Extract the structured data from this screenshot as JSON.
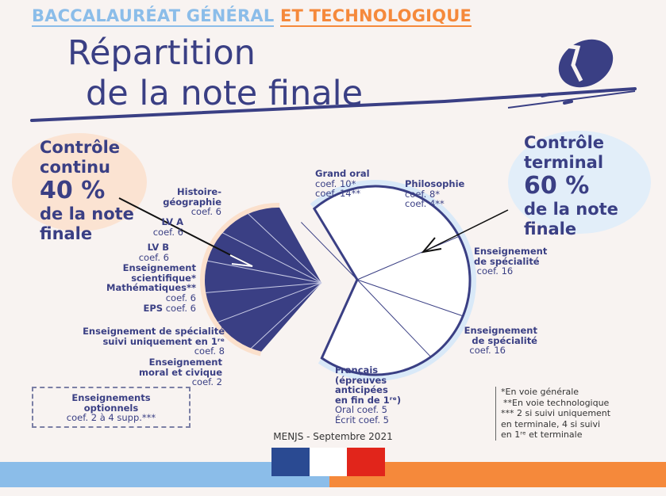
{
  "header": {
    "part1": "BACCALAURÉAT GÉNÉRAL",
    "part2": "ET TECHNOLOGIQUE"
  },
  "title": {
    "line1": "Répartition",
    "line2": "de la note finale"
  },
  "continu": {
    "l1": "Contrôle",
    "l2": "continu",
    "pct": "40 %",
    "l3": "de la note",
    "l4": "finale"
  },
  "terminal": {
    "l1": "Contrôle",
    "l2": "terminal",
    "pct": "60 %",
    "l3": "de la note",
    "l4": "finale"
  },
  "left_labels": [
    {
      "name": "Histoire-",
      "name2": "géographie",
      "coef": "coef. 6"
    },
    {
      "name": "LV A",
      "coef": "coef. 6"
    },
    {
      "name": "LV B",
      "coef": "coef. 6"
    },
    {
      "name": "Enseignement",
      "name2": "scientifique*",
      "name3": "Mathématiques**",
      "coef": "coef. 6"
    },
    {
      "name": "EPS",
      "coef": "coef. 6"
    },
    {
      "name": "Enseignement de spécialité",
      "name2": "suivi uniquement en 1ʳᵉ",
      "coef": "coef. 8"
    },
    {
      "name": "Enseignement",
      "name2": "moral et civique",
      "coef": "coef. 2"
    }
  ],
  "right_labels": [
    {
      "name": "Grand oral",
      "coef": "coef. 10*",
      "coef2": "coef. 14**"
    },
    {
      "name": "Philosophie",
      "coef": "coef. 8*",
      "coef2": "coef. 4**"
    },
    {
      "name": "Enseignement",
      "name2": "de spécialité",
      "coef": "coef. 16"
    },
    {
      "name": "Enseignement",
      "name2": "de spécialité",
      "coef": "coef. 16"
    },
    {
      "name": "Français",
      "name2": "(épreuves",
      "name3": "anticipées",
      "name4": "en fin de 1ʳᵉ)",
      "coef": "Oral coef. 5",
      "coef2": "Écrit coef. 5"
    }
  ],
  "optional": {
    "l1": "Enseignements",
    "l2": "optionnels",
    "l3": "coef. 2 à 4 supp.***"
  },
  "notes": [
    "*En voie générale",
    "**En voie technologique",
    "*** 2 si suivi uniquement",
    "en terminale, 4 si suivi",
    "en 1ʳᵉ et terminale"
  ],
  "credit": "MENJS - Septembre 2021",
  "chart_data": {
    "type": "pie",
    "series": [
      {
        "name": "Contrôle continu",
        "values": [
          6,
          6,
          6,
          6,
          6,
          8,
          2
        ]
      },
      {
        "name": "Contrôle terminal",
        "values": [
          10,
          8,
          16,
          16,
          10
        ]
      }
    ]
  },
  "colors": {
    "navy": "#3a3f84",
    "light_blue": "#8bbde9",
    "orange": "#f5893b",
    "background": "#f8f3f1"
  }
}
